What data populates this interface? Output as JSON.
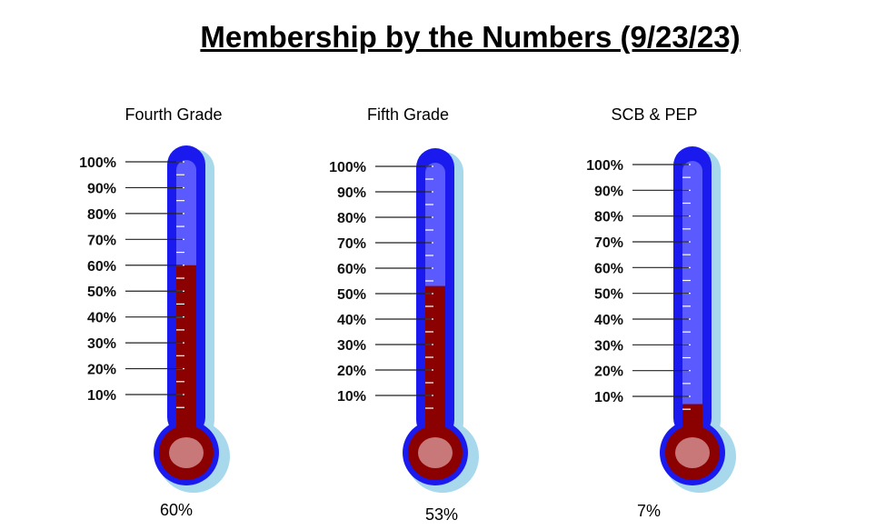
{
  "title": "Membership by the Numbers (9/23/23)",
  "chart_data": {
    "type": "bar",
    "style": "thermometer",
    "categories": [
      "Fourth Grade",
      "Fifth Grade",
      "SCB & PEP"
    ],
    "values": [
      60,
      53,
      7
    ],
    "value_labels": [
      "60%",
      "53%",
      "7%"
    ],
    "ylim": [
      0,
      100
    ],
    "tick_labels": [
      "100%",
      "90%",
      "80%",
      "70%",
      "60%",
      "50%",
      "40%",
      "30%",
      "20%",
      "10%"
    ],
    "colors": {
      "tube": "#1a1aef",
      "tube_inner": "#5a5aff",
      "shadow": "#a8d8ec",
      "mercury": "#8b0000",
      "bulb_highlight": "#c87878"
    }
  }
}
